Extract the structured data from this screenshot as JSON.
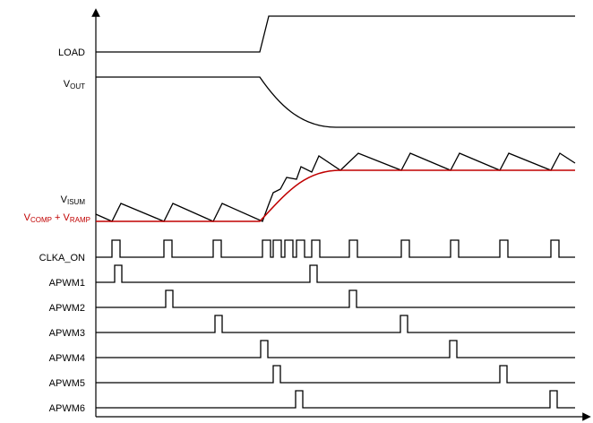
{
  "signals": {
    "load": "LOAD",
    "vout": {
      "main": "V",
      "sub": "OUT"
    },
    "visum": {
      "main": "V",
      "sub": "ISUM"
    },
    "vcomp": {
      "main": "V",
      "sub": "COMP",
      "join": " + ",
      "main2": "V",
      "sub2": "RAMP"
    },
    "clka": "CLKA_ON",
    "apwm": [
      "APWM1",
      "APWM2",
      "APWM3",
      "APWM4",
      "APWM5",
      "APWM6"
    ]
  }
}
